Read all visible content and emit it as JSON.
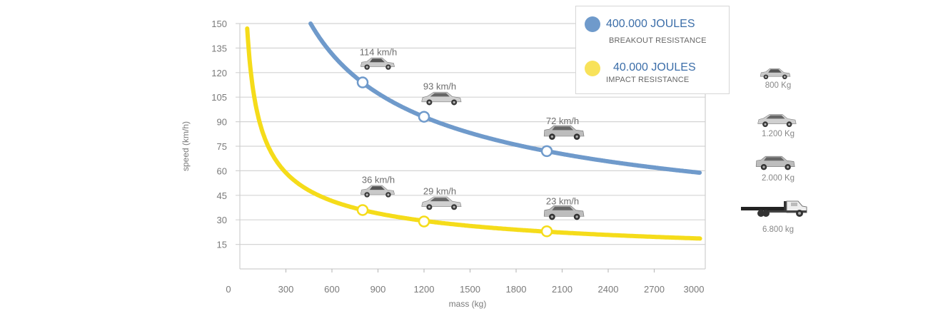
{
  "chart_data": {
    "type": "line",
    "title": "",
    "xlabel": "mass (kg)",
    "ylabel": "speed (km/h)",
    "xlim": [
      0,
      3000
    ],
    "ylim": [
      0,
      150
    ],
    "x_ticks": [
      0,
      300,
      600,
      900,
      1200,
      1500,
      1800,
      2100,
      2400,
      2700,
      3000
    ],
    "y_ticks": [
      15,
      30,
      45,
      60,
      75,
      90,
      105,
      120,
      135,
      150
    ],
    "grid": "horizontal",
    "legend_position": "top-right",
    "series": [
      {
        "name": "400.000 JOULES",
        "subtitle": "BREAKOUT RESISTANCE",
        "color": "#6f9acb",
        "energy_joules": 400000,
        "formula": "v = sqrt(2E/m)",
        "x_range": [
          461,
          3000
        ],
        "points": [
          {
            "mass": 800,
            "speed": 114,
            "label": "114 km/h"
          },
          {
            "mass": 1200,
            "speed": 93,
            "label": "93 km/h"
          },
          {
            "mass": 2000,
            "speed": 72,
            "label": "72 km/h"
          }
        ]
      },
      {
        "name": "40.000 JOULES",
        "subtitle": "IMPACT RESISTANCE",
        "color": "#f5dc1a",
        "energy_joules": 40000,
        "formula": "v = sqrt(2E/m)",
        "x_range": [
          48,
          3000
        ],
        "points": [
          {
            "mass": 800,
            "speed": 36,
            "label": "36 km/h"
          },
          {
            "mass": 1200,
            "speed": 29,
            "label": "29 km/h"
          },
          {
            "mass": 2000,
            "speed": 23,
            "label": "23 km/h"
          }
        ]
      }
    ]
  },
  "vehicle_legend": [
    {
      "icon": "small-car-icon",
      "label": "800 Kg"
    },
    {
      "icon": "hatchback-car-icon",
      "label": "1.200 Kg"
    },
    {
      "icon": "suv-car-icon",
      "label": "2.000 Kg"
    },
    {
      "icon": "flatbed-truck-icon",
      "label": "6.800 kg"
    }
  ]
}
